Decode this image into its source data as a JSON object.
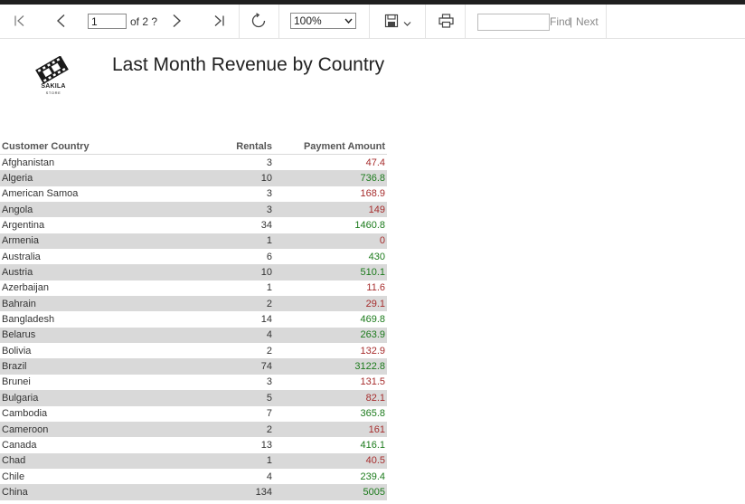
{
  "toolbar": {
    "page_value": "1",
    "page_of": "of 2 ?",
    "zoom": "100%",
    "find_label": "Find",
    "next_label": "Next",
    "pipe": "|"
  },
  "report": {
    "title": "Last Month Revenue by Country",
    "logo_text": "SAKILA",
    "logo_subtext": "STORE",
    "headers": {
      "country": "Customer Country",
      "rentals": "Rentals",
      "amount": "Payment Amount"
    },
    "rows": [
      {
        "country": "Afghanistan",
        "rentals": "3",
        "amount": "47.4",
        "status": "low"
      },
      {
        "country": "Algeria",
        "rentals": "10",
        "amount": "736.8",
        "status": "high"
      },
      {
        "country": "American Samoa",
        "rentals": "3",
        "amount": "168.9",
        "status": "low"
      },
      {
        "country": "Angola",
        "rentals": "3",
        "amount": "149",
        "status": "low"
      },
      {
        "country": "Argentina",
        "rentals": "34",
        "amount": "1460.8",
        "status": "high"
      },
      {
        "country": "Armenia",
        "rentals": "1",
        "amount": "0",
        "status": "low"
      },
      {
        "country": "Australia",
        "rentals": "6",
        "amount": "430",
        "status": "high"
      },
      {
        "country": "Austria",
        "rentals": "10",
        "amount": "510.1",
        "status": "high"
      },
      {
        "country": "Azerbaijan",
        "rentals": "1",
        "amount": "11.6",
        "status": "low"
      },
      {
        "country": "Bahrain",
        "rentals": "2",
        "amount": "29.1",
        "status": "low"
      },
      {
        "country": "Bangladesh",
        "rentals": "14",
        "amount": "469.8",
        "status": "high"
      },
      {
        "country": "Belarus",
        "rentals": "4",
        "amount": "263.9",
        "status": "high"
      },
      {
        "country": "Bolivia",
        "rentals": "2",
        "amount": "132.9",
        "status": "low"
      },
      {
        "country": "Brazil",
        "rentals": "74",
        "amount": "3122.8",
        "status": "high"
      },
      {
        "country": "Brunei",
        "rentals": "3",
        "amount": "131.5",
        "status": "low"
      },
      {
        "country": "Bulgaria",
        "rentals": "5",
        "amount": "82.1",
        "status": "low"
      },
      {
        "country": "Cambodia",
        "rentals": "7",
        "amount": "365.8",
        "status": "high"
      },
      {
        "country": "Cameroon",
        "rentals": "2",
        "amount": "161",
        "status": "low"
      },
      {
        "country": "Canada",
        "rentals": "13",
        "amount": "416.1",
        "status": "high"
      },
      {
        "country": "Chad",
        "rentals": "1",
        "amount": "40.5",
        "status": "low"
      },
      {
        "country": "Chile",
        "rentals": "4",
        "amount": "239.4",
        "status": "high"
      },
      {
        "country": "China",
        "rentals": "134",
        "amount": "5005",
        "status": "high"
      }
    ]
  },
  "colors": {
    "high": "#1b7a1b",
    "low": "#a62c2c",
    "alt_row": "#d9d9d9"
  },
  "icons": [
    "first-page-icon",
    "previous-page-icon",
    "next-page-icon",
    "last-page-icon",
    "refresh-icon",
    "save-icon",
    "chevron-down-icon",
    "print-icon"
  ]
}
